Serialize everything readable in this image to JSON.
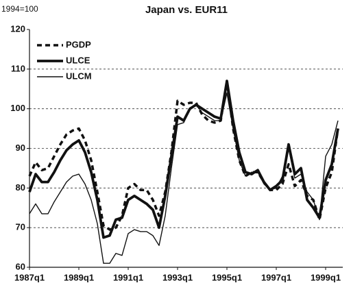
{
  "chart_data": {
    "type": "line",
    "title": "Japan vs. EUR11",
    "annotation": "1994=100",
    "categories": [
      "1987q1",
      null,
      null,
      null,
      null,
      null,
      null,
      null,
      "1989q1",
      null,
      null,
      null,
      null,
      null,
      null,
      null,
      "1991q1",
      null,
      null,
      null,
      null,
      null,
      null,
      null,
      "1993q1",
      null,
      null,
      null,
      null,
      null,
      null,
      null,
      "1995q1",
      null,
      null,
      null,
      null,
      null,
      null,
      null,
      "1997q1",
      null,
      null,
      null,
      null,
      null,
      null,
      null,
      "1999q1",
      null,
      null
    ],
    "series": [
      {
        "name": "PGDP",
        "color": "#111111",
        "style": "dashed",
        "values": [
          83,
          86.5,
          84.5,
          85,
          88,
          91,
          93.5,
          94.5,
          95,
          92,
          87,
          79,
          70.5,
          69.5,
          70,
          73,
          80,
          81,
          79.5,
          79.5,
          77,
          73,
          79,
          89,
          102,
          101,
          101.5,
          101.5,
          98.5,
          97,
          96.5,
          97,
          107,
          95,
          87,
          83,
          84,
          84,
          81.5,
          79.5,
          79.5,
          81,
          86,
          80.5,
          82,
          78,
          77,
          72,
          80,
          84,
          95
        ]
      },
      {
        "name": "ULCE",
        "color": "#111111",
        "style": "thick",
        "values": [
          79,
          83.5,
          81.5,
          81.5,
          84,
          87,
          89.5,
          91,
          92,
          89,
          84,
          77,
          67.5,
          68,
          72,
          72.5,
          77,
          78,
          77,
          76,
          74.5,
          70,
          78,
          88,
          98,
          97,
          100,
          101,
          100,
          99,
          98,
          97.5,
          107,
          97,
          89,
          84,
          83.5,
          84.5,
          81.5,
          79.5,
          80.5,
          82,
          91,
          83.5,
          85,
          77,
          75,
          72.5,
          82,
          86,
          95
        ]
      },
      {
        "name": "ULCM",
        "color": "#111111",
        "style": "thin",
        "values": [
          73.5,
          76,
          73.5,
          73.5,
          76.5,
          79,
          81.5,
          83,
          83.5,
          81,
          77,
          71,
          61,
          61,
          63.5,
          63,
          68.5,
          69.5,
          69,
          69,
          68,
          65.5,
          73,
          85,
          96,
          96.5,
          100,
          101,
          99,
          98,
          97,
          97,
          104,
          95,
          87,
          83,
          84,
          84,
          81,
          79.5,
          80,
          83,
          90,
          82.5,
          83.5,
          79,
          77,
          72,
          88,
          91,
          97
        ]
      }
    ],
    "ylim": [
      60,
      120
    ],
    "yticks": [
      60,
      70,
      80,
      90,
      100,
      110,
      120
    ],
    "grid": true,
    "legend": "upper left"
  }
}
